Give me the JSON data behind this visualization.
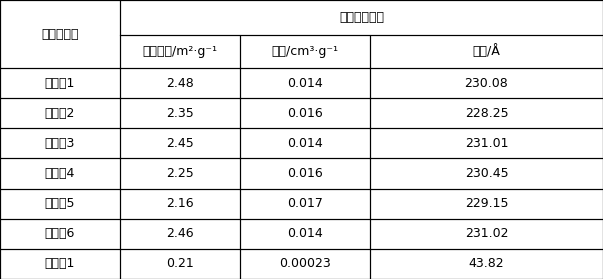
{
  "header_top": "催化剂孔结构",
  "header_left": "催化剂类型",
  "col_headers": [
    "比表面积/m²·g⁻¹",
    "孔容/cm³·g⁻¹",
    "孔径/Å"
  ],
  "rows": [
    [
      "实施例1",
      "2.48",
      "0.014",
      "230.08"
    ],
    [
      "实施例2",
      "2.35",
      "0.016",
      "228.25"
    ],
    [
      "实施例3",
      "2.45",
      "0.014",
      "231.01"
    ],
    [
      "实施例4",
      "2.25",
      "0.016",
      "230.45"
    ],
    [
      "实施例5",
      "2.16",
      "0.017",
      "229.15"
    ],
    [
      "实施例6",
      "2.46",
      "0.014",
      "231.02"
    ],
    [
      "比较例1",
      "0.21",
      "0.00023",
      "43.82"
    ]
  ],
  "bg_color": "#ffffff",
  "header_bg": "#ffffff",
  "line_color": "#000000",
  "font_size": 9,
  "header_font_size": 9
}
